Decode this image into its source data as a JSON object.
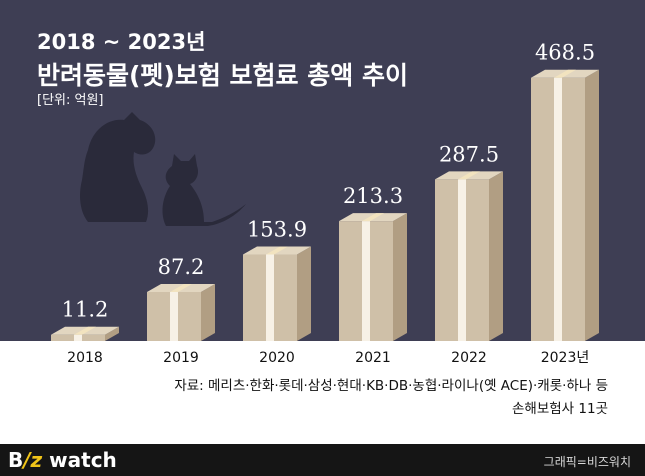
{
  "header": {
    "period": "2018 ~ 2023년",
    "title": "반려동물(펫)보험 보험료 총액 추이",
    "unit": "[단위: 억원]"
  },
  "chart_data": {
    "type": "bar",
    "categories": [
      "2018",
      "2019",
      "2020",
      "2021",
      "2022",
      "2023년"
    ],
    "values": [
      11.2,
      87.2,
      153.9,
      213.3,
      287.5,
      468.5
    ],
    "value_labels": [
      "11.2",
      "87.2",
      "153.9",
      "213.3",
      "287.5",
      "468.5"
    ],
    "title": "반려동물(펫)보험 보험료 총액 추이",
    "ylabel": "",
    "ylim": [
      0,
      500
    ],
    "grid": false,
    "legend": "none"
  },
  "source": {
    "line1": "자료: 메리츠·한화·롯데·삼성·현대·KB·DB·농협·라이나(옛 ACE)·캐롯·하나 등",
    "line2": "손해보험사 11곳"
  },
  "footer": {
    "logo_b": "B",
    "logo_z": "/z",
    "logo_rest": " watch",
    "credit": "그래픽=비즈워치"
  },
  "colors": {
    "background": "#3e3e54",
    "bar_front": "#cfc0a8",
    "bar_side": "#b19e83",
    "bar_top": "#e2d6c0",
    "band": "#f2e3bf",
    "silhouette": "#2a2a3a"
  }
}
